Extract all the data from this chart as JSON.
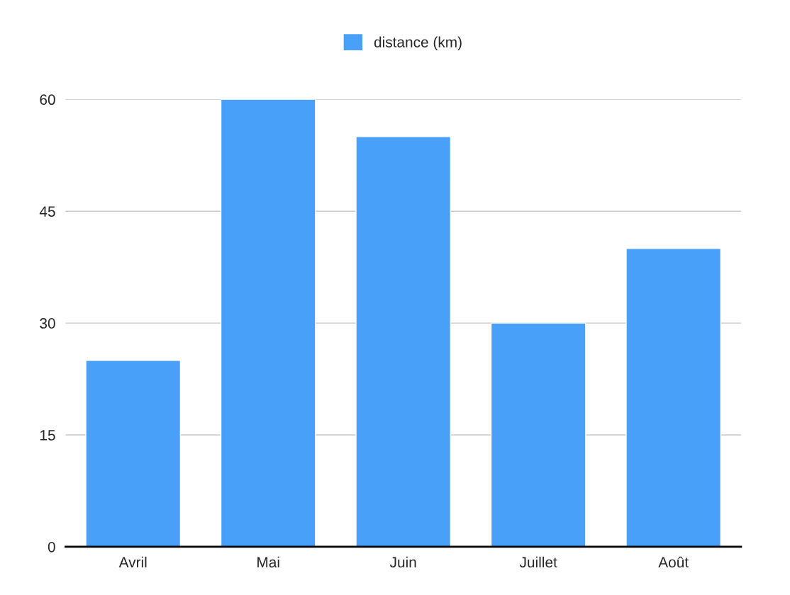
{
  "chart_data": {
    "type": "bar",
    "categories": [
      "Avril",
      "Mai",
      "Juin",
      "Juillet",
      "Août"
    ],
    "series": [
      {
        "name": "distance (km)",
        "color": "#48a0f8",
        "values": [
          25,
          60,
          55,
          30,
          40
        ]
      }
    ],
    "ylim": [
      0,
      60
    ],
    "yticks": [
      0,
      15,
      30,
      45,
      60
    ],
    "grid": "y",
    "legend": "top"
  }
}
